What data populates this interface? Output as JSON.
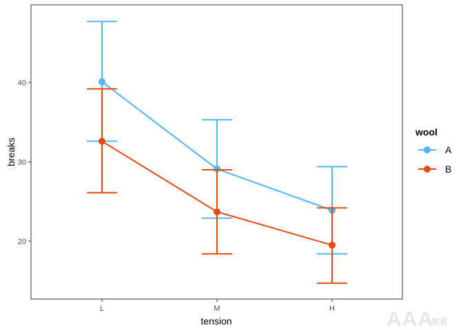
{
  "chart_data": {
    "type": "line",
    "categories": [
      "L",
      "M",
      "H"
    ],
    "xlabel": "tension",
    "ylabel": "breaks",
    "yticks": [
      20,
      30,
      40
    ],
    "ylim": [
      12.7,
      49.8
    ],
    "grid": false,
    "legend_placement": "right",
    "legend_title": "wool",
    "series": [
      {
        "name": "A",
        "color": "#4DB6F5",
        "values": [
          40.1,
          29.1,
          23.9
        ],
        "lower": [
          32.6,
          22.9,
          18.4
        ],
        "upper": [
          47.7,
          35.3,
          29.4
        ]
      },
      {
        "name": "B",
        "color": "#E8480F",
        "values": [
          32.6,
          23.7,
          19.5
        ],
        "lower": [
          26.1,
          18.4,
          14.7
        ],
        "upper": [
          39.2,
          29.0,
          24.2
        ]
      }
    ]
  },
  "watermark": {
    "main": "AAA",
    "small": "教育"
  }
}
